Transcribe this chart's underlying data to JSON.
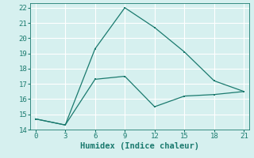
{
  "line1_x": [
    0,
    3,
    6,
    9,
    12,
    15,
    18,
    21
  ],
  "line1_y": [
    14.7,
    14.3,
    19.3,
    22.0,
    20.7,
    19.1,
    17.2,
    16.5
  ],
  "line2_x": [
    0,
    3,
    6,
    9,
    12,
    15,
    18,
    21
  ],
  "line2_y": [
    14.7,
    14.3,
    17.3,
    17.5,
    15.5,
    16.2,
    16.3,
    16.5
  ],
  "line_color": "#1a7a6e",
  "bg_color": "#d6f0ef",
  "grid_color": "#ffffff",
  "xlabel": "Humidex (Indice chaleur)",
  "xlabel_fontsize": 7.5,
  "tick_fontsize": 6.5,
  "xlim": [
    -0.5,
    21.5
  ],
  "ylim": [
    14,
    22.3
  ],
  "xticks": [
    0,
    3,
    6,
    9,
    12,
    15,
    18,
    21
  ],
  "yticks": [
    14,
    15,
    16,
    17,
    18,
    19,
    20,
    21,
    22
  ]
}
